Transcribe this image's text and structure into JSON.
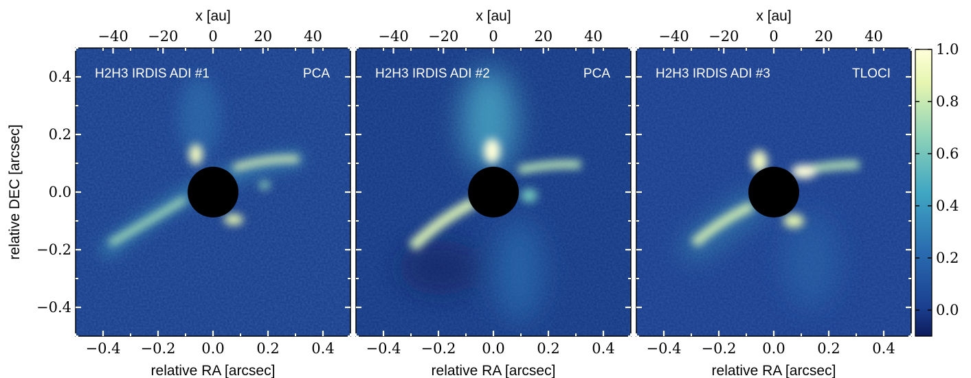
{
  "chart_data": {
    "type": "heatmap",
    "shared": {
      "xlabel_bottom": "relative RA [arcsec]",
      "xlabel_top": "x [au]",
      "ylabel": "relative DEC [arcsec]",
      "xlim": [
        -0.5,
        0.5
      ],
      "ylim": [
        -0.5,
        0.5
      ],
      "xlim_top_au": [
        -55,
        55
      ],
      "bottom_ticks": [
        "−0.4",
        "−0.2",
        "0.0",
        "0.2",
        "0.4"
      ],
      "bottom_tick_values": [
        -0.4,
        -0.2,
        0.0,
        0.2,
        0.4
      ],
      "top_ticks": [
        "−40",
        "−20",
        "0",
        "20",
        "40"
      ],
      "top_tick_values": [
        -40,
        -20,
        0,
        20,
        40
      ],
      "left_ticks": [
        "0.4",
        "0.2",
        "0.0",
        "−0.2",
        "−0.4"
      ],
      "left_tick_values": [
        0.4,
        0.2,
        0.0,
        -0.2,
        -0.4
      ],
      "mask_radius_arcsec": 0.09
    },
    "panels": [
      {
        "label": "H2H3 IRDIS ADI #1",
        "method": "PCA"
      },
      {
        "label": "H2H3 IRDIS ADI #2",
        "method": "PCA"
      },
      {
        "label": "H2H3 IRDIS ADI #3",
        "method": "TLOCI"
      }
    ],
    "colorbar": {
      "range": [
        -0.1,
        1.0
      ],
      "ticks": [
        "1.0",
        "0.8",
        "0.6",
        "0.4",
        "0.2",
        "0.0"
      ],
      "tick_values": [
        1.0,
        0.8,
        0.6,
        0.4,
        0.2,
        0.0
      ],
      "colormap": [
        "#0d1a5c",
        "#1a3f8f",
        "#2a6db0",
        "#3fa6c2",
        "#8fd3b8",
        "#e6f5b0",
        "#ffffd9"
      ]
    },
    "colors": {
      "frame": "#000000",
      "mask": "#000000",
      "text_on_image": "#ffffff"
    }
  }
}
